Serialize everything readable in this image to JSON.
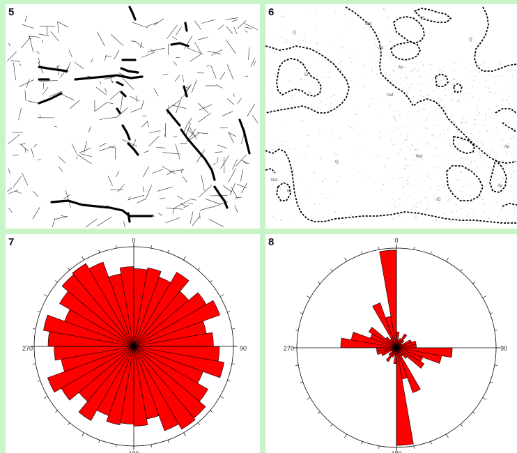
{
  "panels": [
    {
      "label": "5"
    },
    {
      "label": "6"
    },
    {
      "label": "7"
    },
    {
      "label": "8"
    }
  ],
  "map_units": {
    "Q_1": "Q",
    "Q_2": "Q",
    "Q_3": "Q",
    "Naf_1": "Naf",
    "Naf_2": "Naf",
    "Naf_3": "Naf",
    "Naf_4": "Naf",
    "Ap_1": "Ap",
    "Ap_2": "Ap",
    "Ap_3": "Ap",
    "Ap_4": "Ap",
    "El_1": "El",
    "El_2": "El",
    "El_3": "El",
    "Kf_1": "Kf"
  },
  "rose_axes": {
    "north": "0",
    "east": "90",
    "south": "180",
    "west": "270"
  },
  "colors": {
    "background": "#c8f5c8",
    "rose_fill": "#ff0000",
    "lineament": "#000000"
  },
  "chart_data": [
    {
      "type": "rose",
      "bin_width_deg": 10,
      "direction_range": [
        0,
        360
      ],
      "bins_from_0_deg": [
        0.78,
        0.8,
        0.74,
        0.86,
        0.72,
        0.84,
        0.92,
        0.74,
        0.8,
        0.86,
        0.92,
        0.74,
        0.86,
        0.94,
        0.96,
        0.9,
        0.74,
        0.8,
        0.78,
        0.8,
        0.74,
        0.86,
        0.72,
        0.84,
        0.92,
        0.74,
        0.8,
        0.86,
        0.92,
        0.74,
        0.86,
        0.94,
        0.96,
        0.9,
        0.74,
        0.8
      ],
      "axis_labels": [
        "0",
        "90",
        "180",
        "270"
      ]
    },
    {
      "type": "rose",
      "bin_width_deg": 10,
      "direction_range": [
        0,
        360
      ],
      "bins_from_0_deg": [
        0.16,
        0.08,
        0.1,
        0.16,
        0.1,
        0.06,
        0.16,
        0.2,
        0.2,
        0.56,
        0.46,
        0.28,
        0.32,
        0.14,
        0.1,
        0.48,
        0.32,
        0.98,
        0.16,
        0.08,
        0.1,
        0.16,
        0.1,
        0.06,
        0.16,
        0.2,
        0.2,
        0.56,
        0.46,
        0.28,
        0.32,
        0.14,
        0.1,
        0.48,
        0.32,
        0.98
      ],
      "axis_labels": [
        "0",
        "90",
        "180",
        "270"
      ]
    }
  ]
}
